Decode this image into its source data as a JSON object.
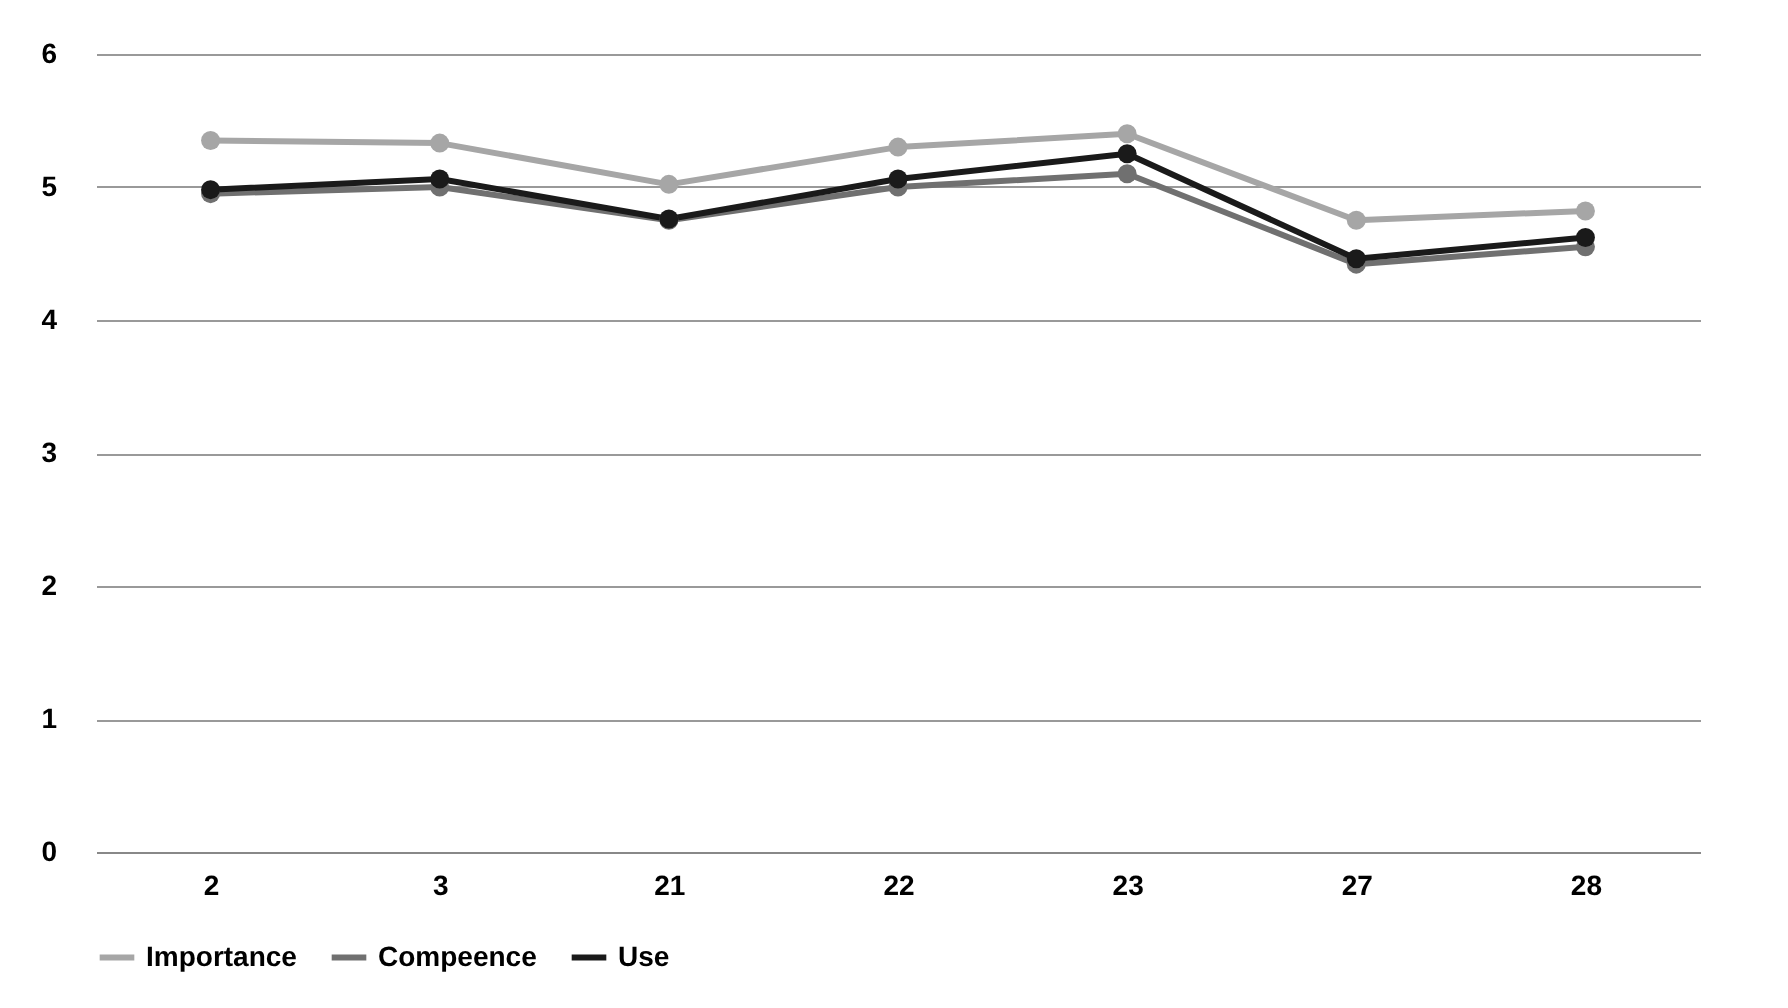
{
  "chart_data": {
    "type": "line",
    "categories": [
      "2",
      "3",
      "21",
      "22",
      "23",
      "27",
      "28"
    ],
    "series": [
      {
        "name": "Importance",
        "color": "#a6a6a6",
        "values": [
          5.35,
          5.33,
          5.02,
          5.3,
          5.4,
          4.75,
          4.82
        ]
      },
      {
        "name": "Compeence",
        "color": "#707070",
        "values": [
          4.95,
          5.0,
          4.75,
          5.0,
          5.1,
          4.42,
          4.55
        ]
      },
      {
        "name": "Use",
        "color": "#1a1a1a",
        "values": [
          4.98,
          5.06,
          4.76,
          5.06,
          5.25,
          4.46,
          4.62
        ]
      }
    ],
    "ylim": [
      0,
      6
    ],
    "yticks": [
      0,
      1,
      2,
      3,
      4,
      5,
      6
    ],
    "grid": "y",
    "legend": "bottom",
    "marker": "circle",
    "line_style": "solid"
  }
}
